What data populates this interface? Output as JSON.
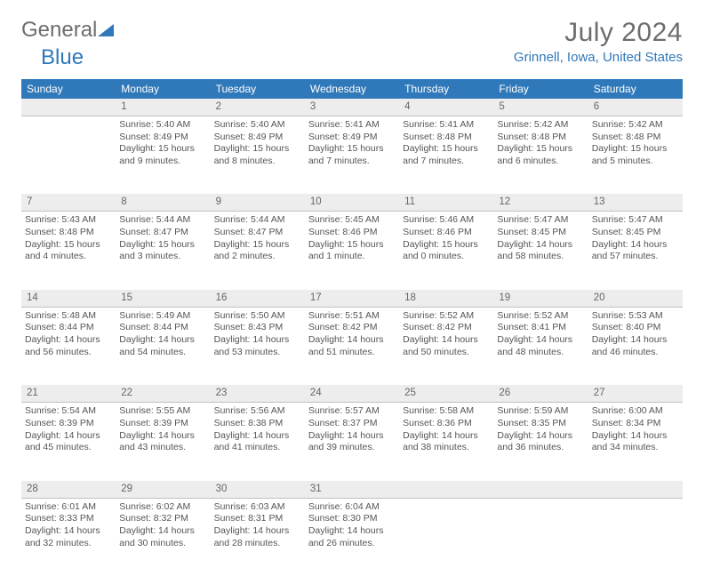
{
  "brand": {
    "part1": "General",
    "part2": "Blue"
  },
  "title": "July 2024",
  "location": "Grinnell, Iowa, United States",
  "colors": {
    "header_bg": "#2f78b9",
    "daynum_bg": "#ededed",
    "text": "#555555",
    "title_text": "#6d6d6d",
    "location_text": "#2f78b9",
    "divider": "#c0c0c0"
  },
  "fonts": {
    "body_pt": 10.5,
    "header_pt": 12,
    "title_pt": 30,
    "location_pt": 15
  },
  "days_of_week": [
    "Sunday",
    "Monday",
    "Tuesday",
    "Wednesday",
    "Thursday",
    "Friday",
    "Saturday"
  ],
  "weeks": [
    {
      "nums": [
        "",
        "1",
        "2",
        "3",
        "4",
        "5",
        "6"
      ],
      "cells": [
        [],
        [
          "Sunrise: 5:40 AM",
          "Sunset: 8:49 PM",
          "Daylight: 15 hours",
          "and 9 minutes."
        ],
        [
          "Sunrise: 5:40 AM",
          "Sunset: 8:49 PM",
          "Daylight: 15 hours",
          "and 8 minutes."
        ],
        [
          "Sunrise: 5:41 AM",
          "Sunset: 8:49 PM",
          "Daylight: 15 hours",
          "and 7 minutes."
        ],
        [
          "Sunrise: 5:41 AM",
          "Sunset: 8:48 PM",
          "Daylight: 15 hours",
          "and 7 minutes."
        ],
        [
          "Sunrise: 5:42 AM",
          "Sunset: 8:48 PM",
          "Daylight: 15 hours",
          "and 6 minutes."
        ],
        [
          "Sunrise: 5:42 AM",
          "Sunset: 8:48 PM",
          "Daylight: 15 hours",
          "and 5 minutes."
        ]
      ]
    },
    {
      "nums": [
        "7",
        "8",
        "9",
        "10",
        "11",
        "12",
        "13"
      ],
      "cells": [
        [
          "Sunrise: 5:43 AM",
          "Sunset: 8:48 PM",
          "Daylight: 15 hours",
          "and 4 minutes."
        ],
        [
          "Sunrise: 5:44 AM",
          "Sunset: 8:47 PM",
          "Daylight: 15 hours",
          "and 3 minutes."
        ],
        [
          "Sunrise: 5:44 AM",
          "Sunset: 8:47 PM",
          "Daylight: 15 hours",
          "and 2 minutes."
        ],
        [
          "Sunrise: 5:45 AM",
          "Sunset: 8:46 PM",
          "Daylight: 15 hours",
          "and 1 minute."
        ],
        [
          "Sunrise: 5:46 AM",
          "Sunset: 8:46 PM",
          "Daylight: 15 hours",
          "and 0 minutes."
        ],
        [
          "Sunrise: 5:47 AM",
          "Sunset: 8:45 PM",
          "Daylight: 14 hours",
          "and 58 minutes."
        ],
        [
          "Sunrise: 5:47 AM",
          "Sunset: 8:45 PM",
          "Daylight: 14 hours",
          "and 57 minutes."
        ]
      ]
    },
    {
      "nums": [
        "14",
        "15",
        "16",
        "17",
        "18",
        "19",
        "20"
      ],
      "cells": [
        [
          "Sunrise: 5:48 AM",
          "Sunset: 8:44 PM",
          "Daylight: 14 hours",
          "and 56 minutes."
        ],
        [
          "Sunrise: 5:49 AM",
          "Sunset: 8:44 PM",
          "Daylight: 14 hours",
          "and 54 minutes."
        ],
        [
          "Sunrise: 5:50 AM",
          "Sunset: 8:43 PM",
          "Daylight: 14 hours",
          "and 53 minutes."
        ],
        [
          "Sunrise: 5:51 AM",
          "Sunset: 8:42 PM",
          "Daylight: 14 hours",
          "and 51 minutes."
        ],
        [
          "Sunrise: 5:52 AM",
          "Sunset: 8:42 PM",
          "Daylight: 14 hours",
          "and 50 minutes."
        ],
        [
          "Sunrise: 5:52 AM",
          "Sunset: 8:41 PM",
          "Daylight: 14 hours",
          "and 48 minutes."
        ],
        [
          "Sunrise: 5:53 AM",
          "Sunset: 8:40 PM",
          "Daylight: 14 hours",
          "and 46 minutes."
        ]
      ]
    },
    {
      "nums": [
        "21",
        "22",
        "23",
        "24",
        "25",
        "26",
        "27"
      ],
      "cells": [
        [
          "Sunrise: 5:54 AM",
          "Sunset: 8:39 PM",
          "Daylight: 14 hours",
          "and 45 minutes."
        ],
        [
          "Sunrise: 5:55 AM",
          "Sunset: 8:39 PM",
          "Daylight: 14 hours",
          "and 43 minutes."
        ],
        [
          "Sunrise: 5:56 AM",
          "Sunset: 8:38 PM",
          "Daylight: 14 hours",
          "and 41 minutes."
        ],
        [
          "Sunrise: 5:57 AM",
          "Sunset: 8:37 PM",
          "Daylight: 14 hours",
          "and 39 minutes."
        ],
        [
          "Sunrise: 5:58 AM",
          "Sunset: 8:36 PM",
          "Daylight: 14 hours",
          "and 38 minutes."
        ],
        [
          "Sunrise: 5:59 AM",
          "Sunset: 8:35 PM",
          "Daylight: 14 hours",
          "and 36 minutes."
        ],
        [
          "Sunrise: 6:00 AM",
          "Sunset: 8:34 PM",
          "Daylight: 14 hours",
          "and 34 minutes."
        ]
      ]
    },
    {
      "nums": [
        "28",
        "29",
        "30",
        "31",
        "",
        "",
        ""
      ],
      "cells": [
        [
          "Sunrise: 6:01 AM",
          "Sunset: 8:33 PM",
          "Daylight: 14 hours",
          "and 32 minutes."
        ],
        [
          "Sunrise: 6:02 AM",
          "Sunset: 8:32 PM",
          "Daylight: 14 hours",
          "and 30 minutes."
        ],
        [
          "Sunrise: 6:03 AM",
          "Sunset: 8:31 PM",
          "Daylight: 14 hours",
          "and 28 minutes."
        ],
        [
          "Sunrise: 6:04 AM",
          "Sunset: 8:30 PM",
          "Daylight: 14 hours",
          "and 26 minutes."
        ],
        [],
        [],
        []
      ]
    }
  ]
}
